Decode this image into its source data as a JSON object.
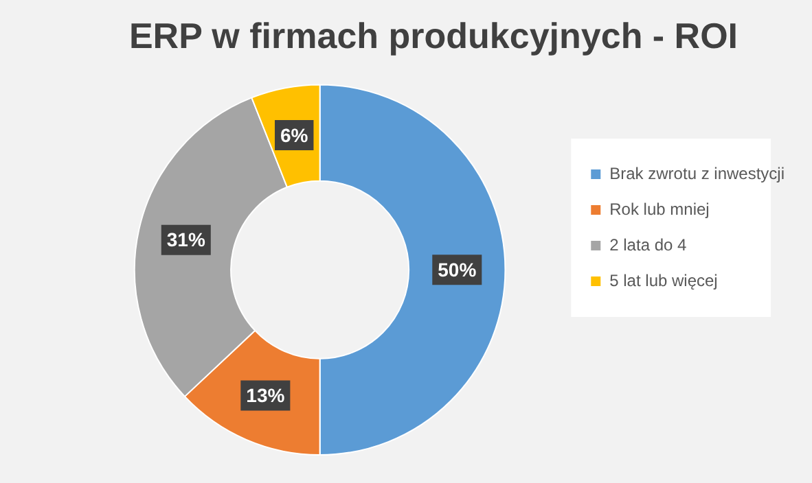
{
  "chart_data": {
    "type": "donut",
    "title": "ERP w firmach produkcyjnych - ROI",
    "categories": [
      "Brak zwrotu z inwestycji",
      "Rok lub mniej",
      "2 lata do 4",
      "5 lat lub więcej"
    ],
    "values": [
      50,
      13,
      31,
      6
    ],
    "colors": [
      "#5b9bd5",
      "#ed7d31",
      "#a5a5a5",
      "#ffc000"
    ],
    "value_labels": [
      "50%",
      "13%",
      "31%",
      "6%"
    ],
    "legend": "right"
  }
}
